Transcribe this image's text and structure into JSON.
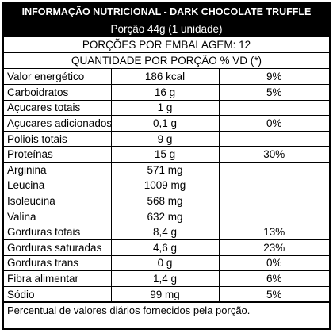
{
  "title": "INFORMAÇÃO NUTRICIONAL - DARK CHOCOLATE TRUFFLE",
  "portion": "Porção 44g (1 unidade)",
  "servings": "PORÇÕES POR EMBALAGEM: 12",
  "columns_header": "QUANTIDADE POR PORÇÃO % VD (*)",
  "rows": [
    {
      "name": "Valor energético",
      "amount": "186 kcal",
      "vd": "9%"
    },
    {
      "name": "Carboidratos",
      "amount": "16 g",
      "vd": "5%"
    },
    {
      "name": "Açucares totais",
      "amount": "1 g",
      "vd": ""
    },
    {
      "name": "Açucares adicionados",
      "amount": "0,1 g",
      "vd": "0%"
    },
    {
      "name": "Poliois totais",
      "amount": "9 g",
      "vd": ""
    },
    {
      "name": "Proteínas",
      "amount": "15 g",
      "vd": "30%"
    },
    {
      "name": "Arginina",
      "amount": "571 mg",
      "vd": ""
    },
    {
      "name": "Leucina",
      "amount": "1009 mg",
      "vd": ""
    },
    {
      "name": "Isoleucina",
      "amount": "568 mg",
      "vd": ""
    },
    {
      "name": "Valina",
      "amount": "632 mg",
      "vd": ""
    },
    {
      "name": "Gorduras totais",
      "amount": "8,4 g",
      "vd": "13%"
    },
    {
      "name": "Gorduras saturadas",
      "amount": "4,6 g",
      "vd": "23%"
    },
    {
      "name": "Gorduras trans",
      "amount": "0 g",
      "vd": "0%"
    },
    {
      "name": "Fibra alimentar",
      "amount": "1,4 g",
      "vd": "6%"
    },
    {
      "name": "Sódio",
      "amount": "99 mg",
      "vd": "5%"
    }
  ],
  "footer": "Percentual de valores diários fornecidos pela porção."
}
